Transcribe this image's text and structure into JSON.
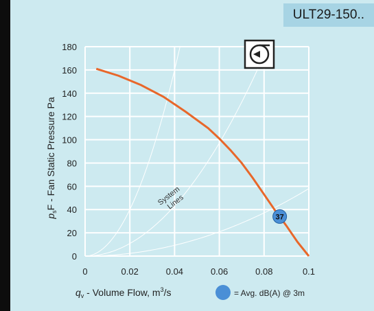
{
  "header": {
    "model": "ULT29-150.."
  },
  "chart_data": {
    "type": "line",
    "xlabel_var": "q",
    "xlabel_sub": "v",
    "xlabel_text": " - Volume Flow, m",
    "xlabel_sup": "3",
    "xlabel_unit": "/s",
    "ylabel_var": "p",
    "ylabel_sub": "s",
    "ylabel_text": "F - Fan Static Pressure  Pa",
    "xlim": [
      0,
      0.1
    ],
    "ylim": [
      0,
      180
    ],
    "x_ticks": [
      "0",
      "0.02",
      "0.04",
      "0.06",
      "0.08",
      "0.1"
    ],
    "x_tick_values": [
      0,
      0.02,
      0.04,
      0.06,
      0.08,
      0.1
    ],
    "y_ticks": [
      "0",
      "20",
      "40",
      "60",
      "80",
      "100",
      "120",
      "140",
      "160",
      "180"
    ],
    "y_tick_values": [
      0,
      20,
      40,
      60,
      80,
      100,
      120,
      140,
      160,
      180
    ],
    "grid": true,
    "series": [
      {
        "color": "#e8672a",
        "x": [
          0.005,
          0.015,
          0.025,
          0.035,
          0.045,
          0.055,
          0.06,
          0.065,
          0.07,
          0.075,
          0.08,
          0.085,
          0.09,
          0.095,
          0.1
        ],
        "y": [
          161,
          155,
          147,
          137,
          124,
          110,
          101,
          91,
          80,
          67,
          53,
          39,
          26,
          12,
          0
        ]
      }
    ],
    "system_lines": [
      {
        "k": 100000
      },
      {
        "k": 27000
      },
      {
        "k": 5800
      }
    ],
    "system_lines_label": [
      "System",
      "Lines"
    ],
    "marker": {
      "x": 0.087,
      "y": 34,
      "label": "37",
      "color": "#4a8fd6"
    },
    "legend": {
      "text": "= Avg. dB(A) @ 3m",
      "color": "#4a8fd6"
    }
  }
}
